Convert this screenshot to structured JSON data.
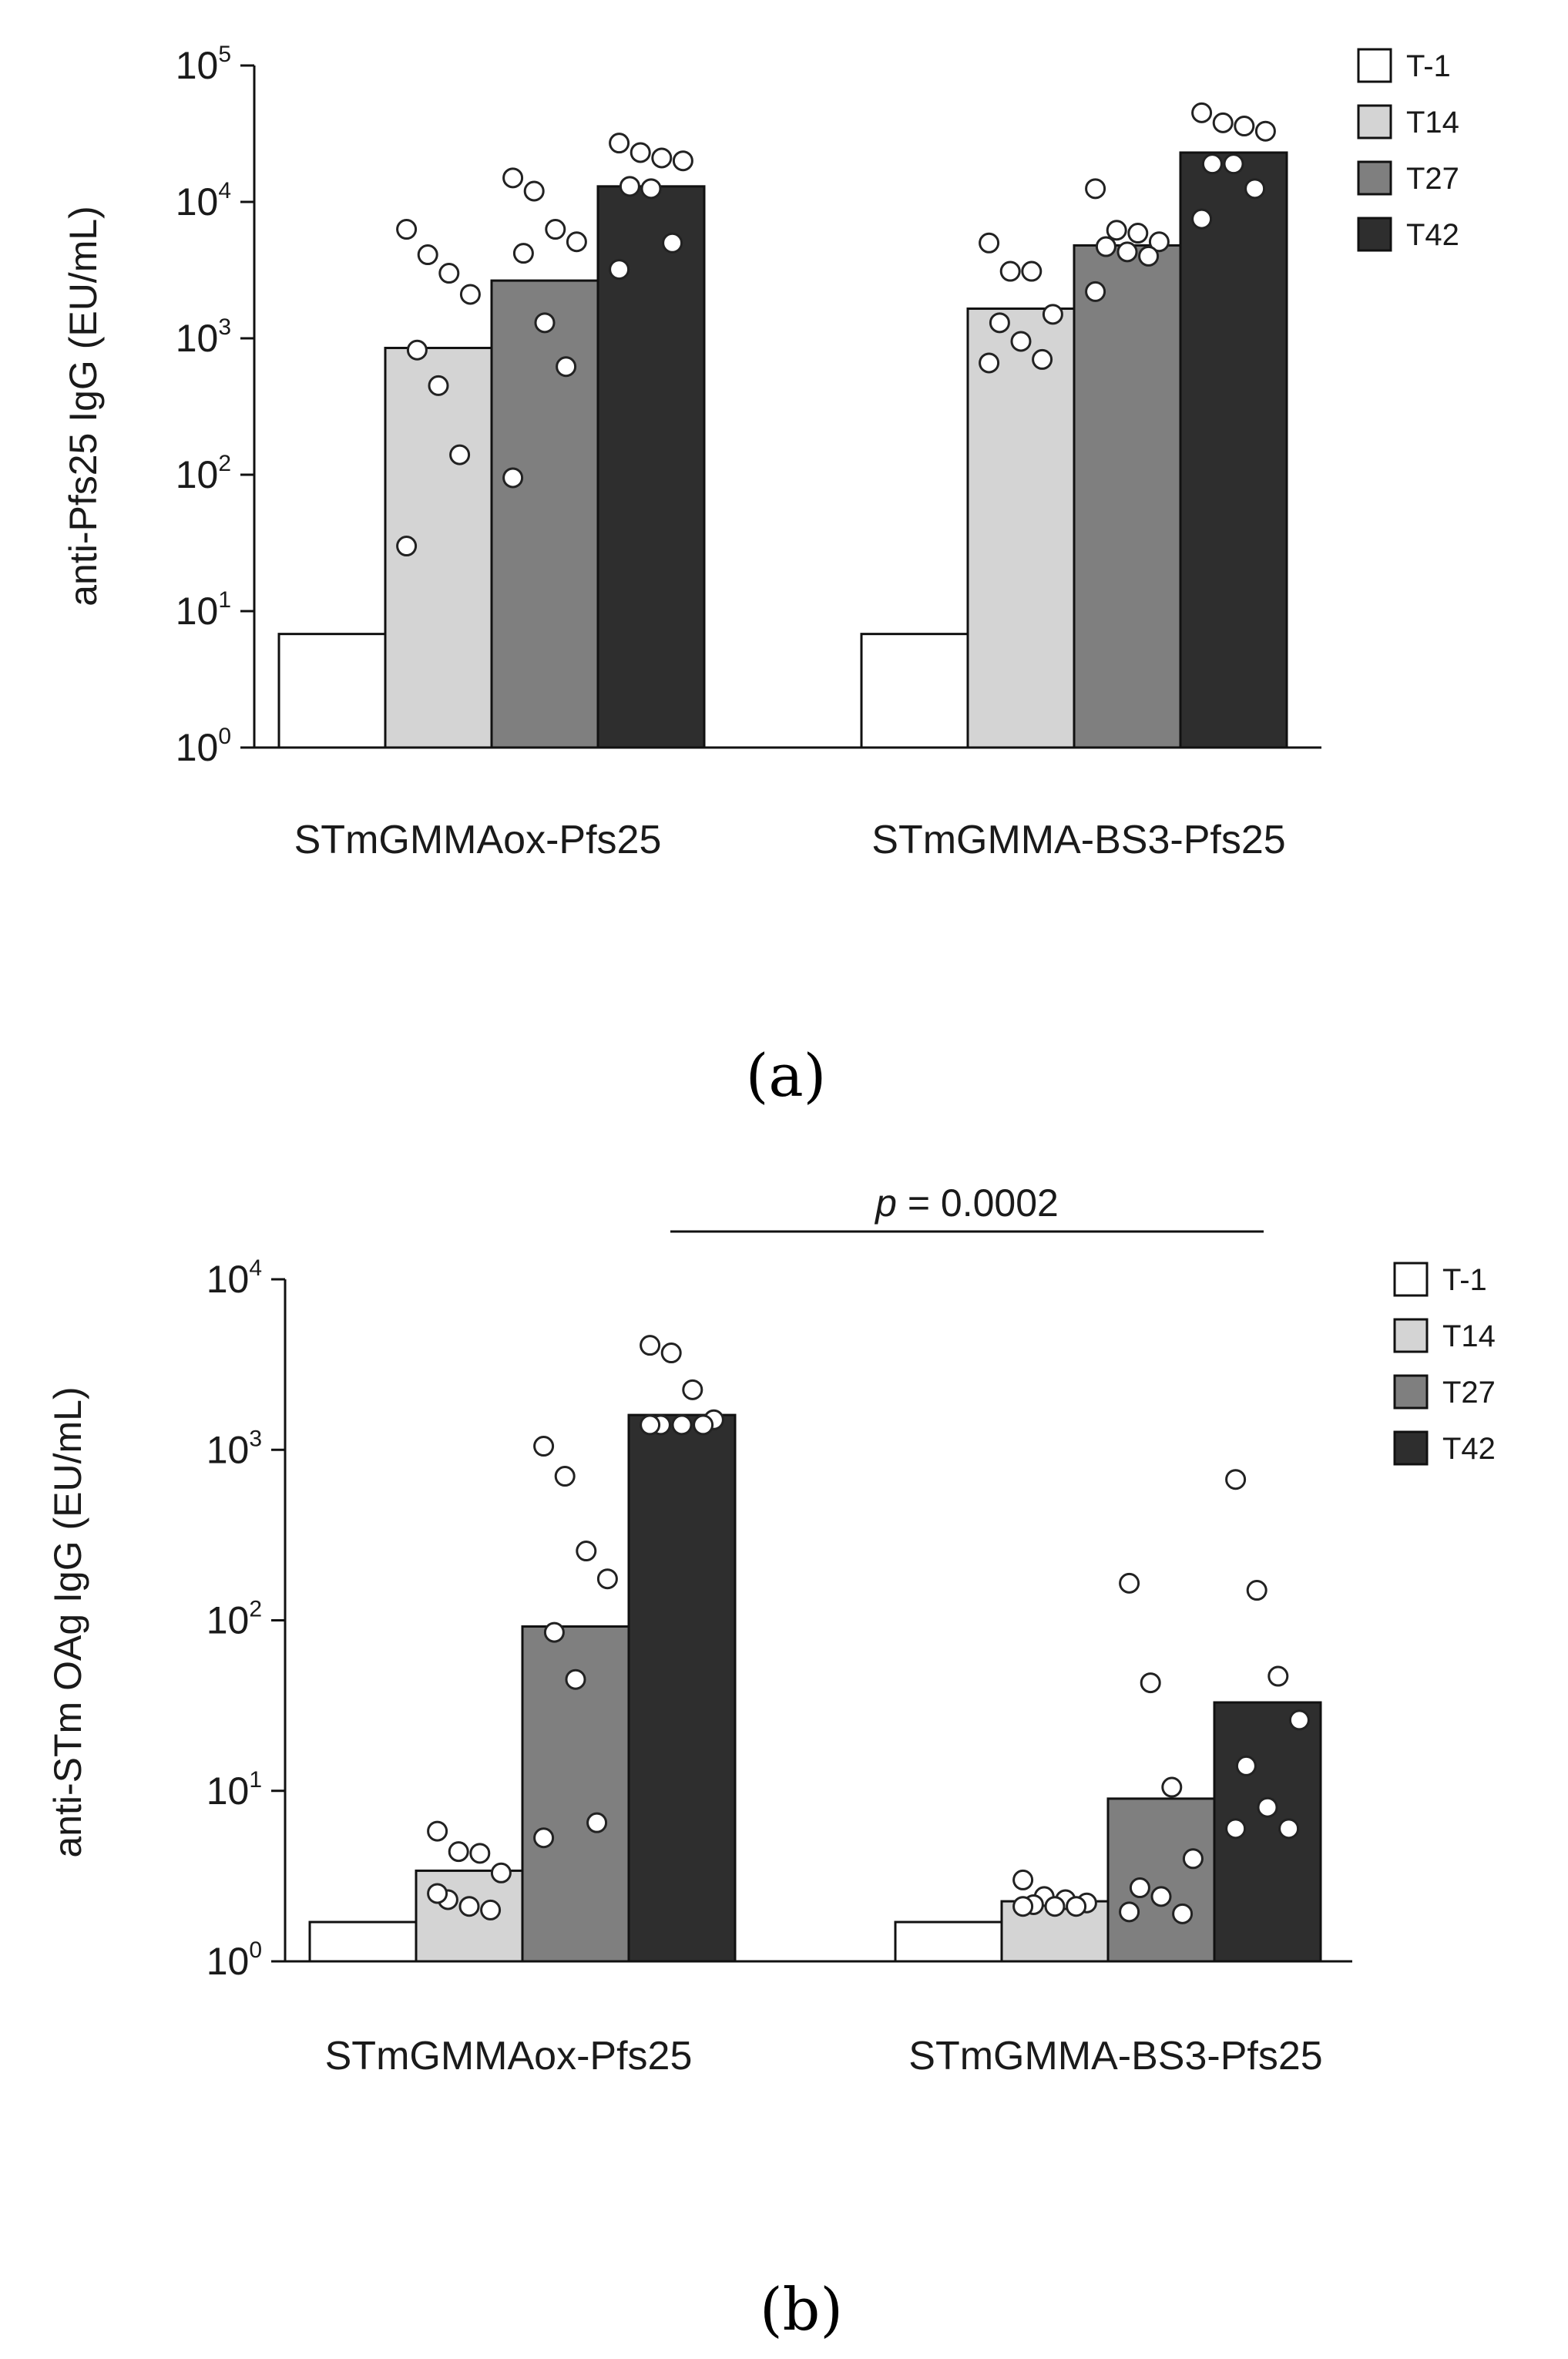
{
  "chart_data": [
    {
      "type": "bar",
      "panel_label": "(a)",
      "scale": "log10",
      "ylabel": "anti-Pfs25 IgG (EU/mL)",
      "ylim": [
        1,
        100000
      ],
      "yticks": [
        {
          "base": "10",
          "exp": "0"
        },
        {
          "base": "10",
          "exp": "1"
        },
        {
          "base": "10",
          "exp": "2"
        },
        {
          "base": "10",
          "exp": "3"
        },
        {
          "base": "10",
          "exp": "4"
        },
        {
          "base": "10",
          "exp": "5"
        }
      ],
      "categories": [
        "STmGMMAox-Pfs25",
        "STmGMMA-BS3-Pfs25"
      ],
      "legend": [
        {
          "name": "T-1",
          "color": "#ffffff"
        },
        {
          "name": "T14",
          "color": "#d4d4d4"
        },
        {
          "name": "T27",
          "color": "#7f7f7f"
        },
        {
          "name": "T42",
          "color": "#2e2e2e"
        }
      ],
      "series": [
        {
          "name": "T-1",
          "values": [
            6.8,
            6.8
          ],
          "points": [
            [],
            []
          ]
        },
        {
          "name": "T14",
          "values": [
            850,
            1650
          ],
          "points": [
            [
              6300,
              4100,
              3000,
              2100,
              820,
              450,
              140,
              30
            ],
            [
              5000,
              3100,
              3100,
              1500,
              1300,
              950,
              700,
              660
            ]
          ]
        },
        {
          "name": "T27",
          "values": [
            2650,
            4800
          ],
          "points": [
            [
              15000,
              12000,
              6300,
              5100,
              4200,
              1300,
              620,
              95
            ],
            [
              12500,
              6200,
              5900,
              5100,
              4700,
              4300,
              4000,
              2200
            ]
          ]
        },
        {
          "name": "T42",
          "values": [
            13000,
            23000
          ],
          "points": [
            [
              27000,
              23000,
              21000,
              20000,
              13000,
              12500,
              5000,
              3200
            ],
            [
              45000,
              38000,
              36000,
              33000,
              19000,
              19000,
              12500,
              7500
            ]
          ]
        }
      ]
    },
    {
      "type": "bar",
      "panel_label": "(b)",
      "scale": "log10",
      "ylabel": "anti-STm OAg IgG (EU/mL)",
      "ylim": [
        1,
        10000
      ],
      "yticks": [
        {
          "base": "10",
          "exp": "0"
        },
        {
          "base": "10",
          "exp": "1"
        },
        {
          "base": "10",
          "exp": "2"
        },
        {
          "base": "10",
          "exp": "3"
        },
        {
          "base": "10",
          "exp": "4"
        }
      ],
      "categories": [
        "STmGMMAox-Pfs25",
        "STmGMMA-BS3-Pfs25"
      ],
      "annotation": {
        "p_symbol": "p",
        "p_text": " = 0.0002"
      },
      "legend": [
        {
          "name": "T-1",
          "color": "#ffffff"
        },
        {
          "name": "T14",
          "color": "#d4d4d4"
        },
        {
          "name": "T27",
          "color": "#7f7f7f"
        },
        {
          "name": "T42",
          "color": "#2e2e2e"
        }
      ],
      "series": [
        {
          "name": "T-1",
          "values": [
            1.7,
            1.7
          ],
          "points": [
            [],
            []
          ]
        },
        {
          "name": "T14",
          "values": [
            3.4,
            2.25
          ],
          "points": [
            [
              5.8,
              4.4,
              4.3,
              3.3,
              2.3,
              2.1,
              2.0,
              2.5
            ],
            [
              3.0,
              2.4,
              2.3,
              2.2,
              2.15,
              2.1,
              2.1,
              2.1
            ]
          ]
        },
        {
          "name": "T27",
          "values": [
            92,
            9.0
          ],
          "points": [
            [
              1050,
              700,
              255,
              175,
              85,
              45,
              6.5,
              5.3
            ],
            [
              165,
              43,
              10.5,
              4.0,
              2.7,
              2.4,
              1.9,
              1.95
            ]
          ]
        },
        {
          "name": "T42",
          "values": [
            1600,
            33
          ],
          "points": [
            [
              4100,
              3700,
              2250,
              1500,
              1400,
              1400,
              1400,
              1400
            ],
            [
              670,
              150,
              47,
              26,
              14,
              8.0,
              6.0,
              6.0
            ]
          ]
        }
      ]
    }
  ]
}
